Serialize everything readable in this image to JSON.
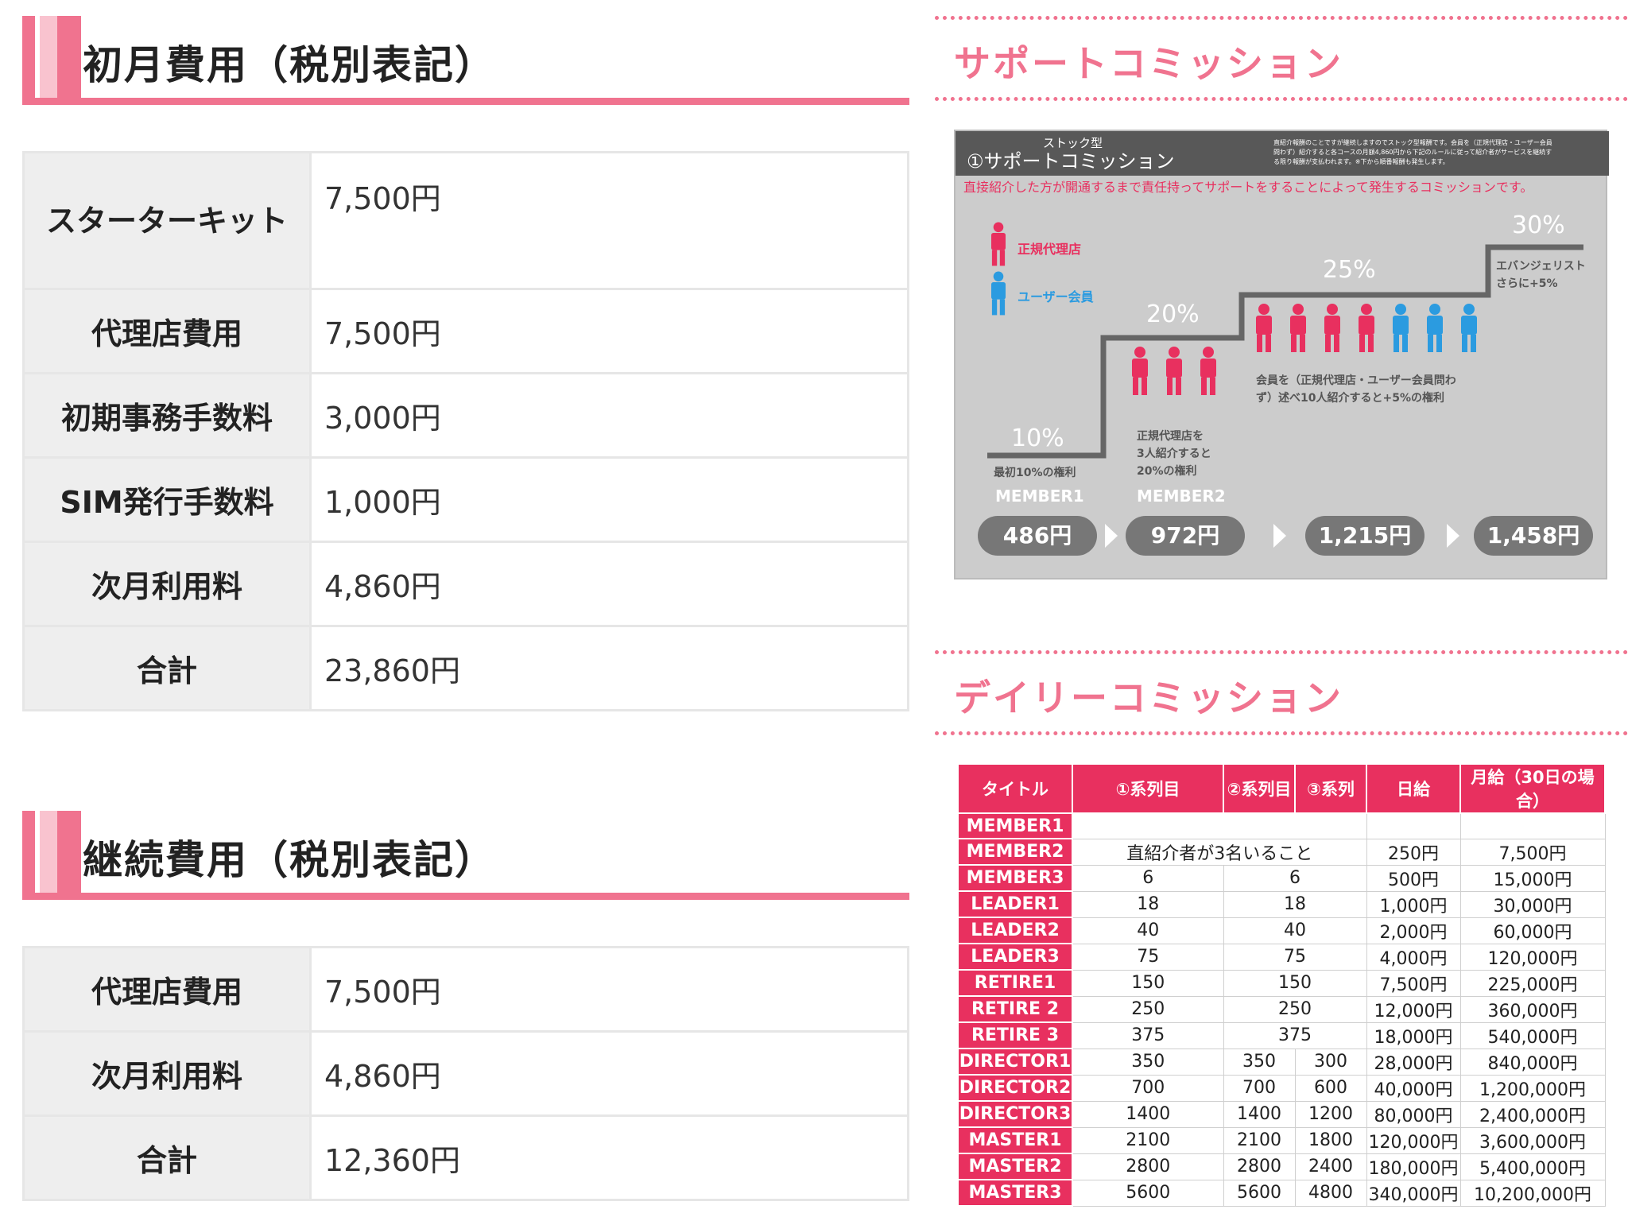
{
  "initial": {
    "title": "初月費用（税別表記）",
    "rows": [
      {
        "label": "スターターキット",
        "value": "7,500円"
      },
      {
        "label": "代理店費用",
        "value": "7,500円"
      },
      {
        "label": "初期事務手数料",
        "value": "3,000円"
      },
      {
        "label": "SIM発行手数料",
        "value": "1,000円"
      },
      {
        "label": "次月利用料",
        "value": "4,860円"
      },
      {
        "label": "合計",
        "value": "23,860円"
      }
    ]
  },
  "continuing": {
    "title": "継続費用（税別表記）",
    "rows": [
      {
        "label": "代理店費用",
        "value": "7,500円"
      },
      {
        "label": "次月利用料",
        "value": "4,860円"
      },
      {
        "label": "合計",
        "value": "12,360円"
      }
    ]
  },
  "support": {
    "heading": "サポートコミッション",
    "box_tag": "ストック型",
    "box_title": "①サポートコミッション",
    "box_note_1": "直紹介報酬のことですが継続しますのでストック型報酬です。会員を（正規代理店・ユーザー会員",
    "box_note_2": "問わず）紹介すると各コースの月額4,860円から下記のルールに従って紹介者がサービスを継続す",
    "box_note_3": "る限り報酬が支払われます。※下から順番報酬も発生します。",
    "description": "直接紹介した方が開通するまで責任持ってサポートをすることによって発生するコミッションです。",
    "legend_agency": "正規代理店",
    "legend_user": "ユーザー会員",
    "steps": [
      {
        "percent": "10%",
        "amount": "486円",
        "note_1": "最初10%の権利",
        "note_2": "",
        "note_3": "",
        "member": "MEMBER1"
      },
      {
        "percent": "20%",
        "amount": "972円",
        "note_1": "正規代理店を",
        "note_2": "3人紹介すると",
        "note_3": "20%の権利",
        "member": "MEMBER2"
      },
      {
        "percent": "25%",
        "amount": "1,215円",
        "note_1": "会員を（正規代理店・ユーザー会員問わ",
        "note_2": "ず）述べ10人紹介すると+5%の権利",
        "note_3": "",
        "member": ""
      },
      {
        "percent": "30%",
        "amount": "1,458円",
        "note_1": "エバンジェリスト",
        "note_2": "さらに+5%",
        "note_3": "",
        "member": ""
      }
    ],
    "colors": {
      "agency": "#e8305f",
      "user": "#2b9be0",
      "step_line": "#666666",
      "pill": "#777777"
    }
  },
  "daily": {
    "heading": "デイリーコミッション",
    "headers": [
      "タイトル",
      "①系列目",
      "②系列目",
      "③系列",
      "日給",
      "月給（30日の場合）"
    ],
    "member2_condition": "直紹介者が3名いること",
    "rows": [
      {
        "name": "MEMBER1",
        "c1": "",
        "c2": "",
        "c3": "",
        "daily": "",
        "monthly": ""
      },
      {
        "name": "MEMBER2",
        "c1": "",
        "c2": "",
        "c3": "",
        "daily": "250円",
        "monthly": "7,500円"
      },
      {
        "name": "MEMBER3",
        "c1": "6",
        "c2": "6",
        "c3": "",
        "daily": "500円",
        "monthly": "15,000円"
      },
      {
        "name": "LEADER1",
        "c1": "18",
        "c2": "18",
        "c3": "",
        "daily": "1,000円",
        "monthly": "30,000円"
      },
      {
        "name": "LEADER2",
        "c1": "40",
        "c2": "40",
        "c3": "",
        "daily": "2,000円",
        "monthly": "60,000円"
      },
      {
        "name": "LEADER3",
        "c1": "75",
        "c2": "75",
        "c3": "",
        "daily": "4,000円",
        "monthly": "120,000円"
      },
      {
        "name": "RETIRE1",
        "c1": "150",
        "c2": "150",
        "c3": "",
        "daily": "7,500円",
        "monthly": "225,000円"
      },
      {
        "name": "RETIRE 2",
        "c1": "250",
        "c2": "250",
        "c3": "",
        "daily": "12,000円",
        "monthly": "360,000円"
      },
      {
        "name": "RETIRE 3",
        "c1": "375",
        "c2": "375",
        "c3": "",
        "daily": "18,000円",
        "monthly": "540,000円"
      },
      {
        "name": "DIRECTOR1",
        "c1": "350",
        "c2": "350",
        "c3": "300",
        "daily": "28,000円",
        "monthly": "840,000円"
      },
      {
        "name": "DIRECTOR2",
        "c1": "700",
        "c2": "700",
        "c3": "600",
        "daily": "40,000円",
        "monthly": "1,200,000円"
      },
      {
        "name": "DIRECTOR3",
        "c1": "1400",
        "c2": "1400",
        "c3": "1200",
        "daily": "80,000円",
        "monthly": "2,400,000円"
      },
      {
        "name": "MASTER1",
        "c1": "2100",
        "c2": "2100",
        "c3": "1800",
        "daily": "120,000円",
        "monthly": "3,600,000円"
      },
      {
        "name": "MASTER2",
        "c1": "2800",
        "c2": "2800",
        "c3": "2400",
        "daily": "180,000円",
        "monthly": "5,400,000円"
      },
      {
        "name": "MASTER3",
        "c1": "5600",
        "c2": "5600",
        "c3": "4800",
        "daily": "340,000円",
        "monthly": "10,200,000円"
      }
    ]
  },
  "colors": {
    "accent": "#f0738f",
    "accent_light": "#f9c3cf",
    "table_red": "#e8305f"
  }
}
